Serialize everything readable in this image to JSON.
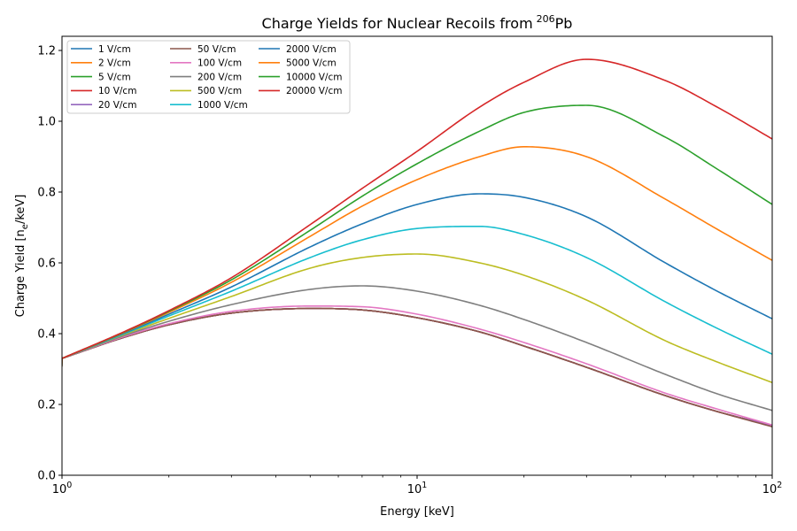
{
  "chart_data": {
    "type": "line",
    "title": "Charge Yields for Nuclear Recoils from",
    "title_superscript": "206",
    "title_suffix": "Pb",
    "xlabel": "Energy [keV]",
    "ylabel": "Charge Yield [n",
    "ylabel_subscript": "e",
    "ylabel_suffix": "/keV]",
    "x_scale": "log",
    "xlim": [
      1,
      100
    ],
    "ylim": [
      0,
      1.24
    ],
    "x_ticks": [
      {
        "value": 1,
        "base": "10",
        "exp": "0"
      },
      {
        "value": 10,
        "base": "10",
        "exp": "1"
      },
      {
        "value": 100,
        "base": "10",
        "exp": "2"
      }
    ],
    "y_ticks": [
      "0.0",
      "0.2",
      "0.4",
      "0.6",
      "0.8",
      "1.0",
      "1.2"
    ],
    "legend_position": "top-left",
    "legend_columns": 3,
    "x": [
      1.0,
      1.5,
      2,
      3,
      5,
      7,
      10,
      15,
      20,
      30,
      50,
      70,
      100
    ],
    "series": [
      {
        "name": "1 V/cm",
        "color": "#1f77b4",
        "values": [
          0.33,
          0.39,
          0.425,
          0.458,
          0.471,
          0.467,
          0.445,
          0.405,
          0.365,
          0.305,
          0.225,
          0.18,
          0.14
        ]
      },
      {
        "name": "2 V/cm",
        "color": "#ff7f0e",
        "values": [
          0.33,
          0.39,
          0.425,
          0.458,
          0.471,
          0.467,
          0.445,
          0.405,
          0.365,
          0.305,
          0.225,
          0.18,
          0.14
        ]
      },
      {
        "name": "5 V/cm",
        "color": "#2ca02c",
        "values": [
          0.33,
          0.39,
          0.425,
          0.458,
          0.471,
          0.467,
          0.445,
          0.405,
          0.365,
          0.305,
          0.225,
          0.18,
          0.14
        ]
      },
      {
        "name": "10 V/cm",
        "color": "#d62728",
        "values": [
          0.33,
          0.39,
          0.425,
          0.458,
          0.471,
          0.467,
          0.445,
          0.405,
          0.365,
          0.305,
          0.225,
          0.18,
          0.14
        ]
      },
      {
        "name": "20 V/cm",
        "color": "#9467bd",
        "values": [
          0.33,
          0.39,
          0.425,
          0.458,
          0.471,
          0.467,
          0.445,
          0.405,
          0.365,
          0.305,
          0.225,
          0.18,
          0.14
        ]
      },
      {
        "name": "50 V/cm",
        "color": "#8c564b",
        "values": [
          0.33,
          0.39,
          0.425,
          0.458,
          0.471,
          0.467,
          0.445,
          0.405,
          0.365,
          0.305,
          0.225,
          0.18,
          0.137
        ]
      },
      {
        "name": "100 V/cm",
        "color": "#e377c2",
        "values": [
          0.33,
          0.392,
          0.428,
          0.463,
          0.478,
          0.476,
          0.455,
          0.413,
          0.375,
          0.315,
          0.232,
          0.187,
          0.142
        ]
      },
      {
        "name": "200 V/cm",
        "color": "#7f7f7f",
        "values": [
          0.33,
          0.395,
          0.435,
          0.482,
          0.525,
          0.535,
          0.52,
          0.48,
          0.44,
          0.375,
          0.285,
          0.23,
          0.183
        ]
      },
      {
        "name": "500 V/cm",
        "color": "#bcbd22",
        "values": [
          0.33,
          0.398,
          0.443,
          0.505,
          0.585,
          0.615,
          0.625,
          0.6,
          0.565,
          0.495,
          0.38,
          0.32,
          0.262
        ]
      },
      {
        "name": "1000 V/cm",
        "color": "#17becf",
        "values": [
          0.33,
          0.4,
          0.45,
          0.52,
          0.615,
          0.665,
          0.697,
          0.703,
          0.68,
          0.615,
          0.49,
          0.415,
          0.342
        ]
      },
      {
        "name": "2000 V/cm",
        "color": "#1f77b4",
        "values": [
          0.33,
          0.402,
          0.455,
          0.532,
          0.645,
          0.71,
          0.765,
          0.795,
          0.785,
          0.73,
          0.6,
          0.52,
          0.442
        ]
      },
      {
        "name": "5000 V/cm",
        "color": "#ff7f0e",
        "values": [
          0.33,
          0.404,
          0.46,
          0.545,
          0.675,
          0.76,
          0.835,
          0.9,
          0.928,
          0.9,
          0.78,
          0.695,
          0.607
        ]
      },
      {
        "name": "10000 V/cm",
        "color": "#2ca02c",
        "values": [
          0.33,
          0.405,
          0.463,
          0.552,
          0.692,
          0.788,
          0.88,
          0.972,
          1.025,
          1.045,
          0.955,
          0.865,
          0.765
        ]
      },
      {
        "name": "20000 V/cm",
        "color": "#d62728",
        "values": [
          0.33,
          0.406,
          0.465,
          0.558,
          0.708,
          0.81,
          0.915,
          1.04,
          1.11,
          1.175,
          1.115,
          1.04,
          0.95
        ]
      }
    ]
  }
}
